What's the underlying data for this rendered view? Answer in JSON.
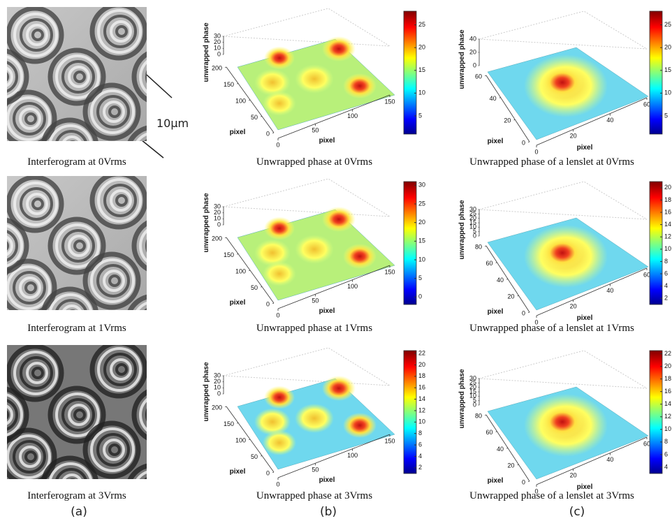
{
  "column_labels": [
    "(a)",
    "(b)",
    "(c)"
  ],
  "scale_label": "10μm",
  "rows": [
    {
      "interferogram_caption": "Interferogram at 0Vrms",
      "phase": {
        "caption": "Unwrapped phase at 0Vrms",
        "zlabel": "unwrapped phase",
        "ylabel": "pixel",
        "xlabel": "pixel",
        "zticks": [
          0,
          10,
          20,
          30
        ],
        "yticks": [
          0,
          50,
          100,
          150,
          200
        ],
        "xticks": [
          0,
          50,
          100,
          150
        ],
        "colorbar": {
          "lim": [
            1,
            28
          ],
          "ticks": [
            5,
            10,
            15,
            20,
            25
          ]
        }
      },
      "lenslet": {
        "caption": "Unwrapped phase of a lenslet at 0Vrms",
        "zlabel": "unwrapped phase",
        "ylabel": "pixel",
        "xlabel": "pixel",
        "zticks": [
          0,
          20,
          40
        ],
        "yticks": [
          0,
          20,
          40,
          60
        ],
        "xticks": [
          0,
          20,
          40,
          60
        ],
        "colorbar": {
          "lim": [
            1,
            28
          ],
          "ticks": [
            5,
            10,
            15,
            20,
            25
          ]
        }
      }
    },
    {
      "interferogram_caption": "Interferogram at 1Vrms",
      "phase": {
        "caption": "Unwrapped phase at 1Vrms",
        "zlabel": "unwrapped phase",
        "ylabel": "pixel",
        "xlabel": "pixel",
        "zticks": [
          0,
          10,
          20,
          30
        ],
        "yticks": [
          0,
          50,
          100,
          150,
          200
        ],
        "xticks": [
          0,
          50,
          100,
          150
        ],
        "colorbar": {
          "lim": [
            -2,
            31
          ],
          "ticks": [
            0,
            5,
            10,
            15,
            20,
            25,
            30
          ]
        }
      },
      "lenslet": {
        "caption": "Unwrapped phase of a lenslet at 1Vrms",
        "zlabel": "unwrapped phase",
        "ylabel": "pixel",
        "xlabel": "pixel",
        "zticks": [
          0,
          5,
          10,
          15,
          20,
          25,
          30
        ],
        "yticks": [
          0,
          20,
          40,
          60,
          80
        ],
        "xticks": [
          0,
          20,
          40,
          60
        ],
        "colorbar": {
          "lim": [
            1,
            21
          ],
          "ticks": [
            2,
            4,
            6,
            8,
            10,
            12,
            14,
            16,
            18,
            20
          ]
        }
      }
    },
    {
      "interferogram_caption": "Interferogram at 3Vrms",
      "phase": {
        "caption": "Unwrapped phase at 3Vrms",
        "zlabel": "unwrapped phase",
        "ylabel": "pixel",
        "xlabel": "pixel",
        "zticks": [
          0,
          10,
          20,
          30
        ],
        "yticks": [
          0,
          50,
          100,
          150,
          200
        ],
        "xticks": [
          0,
          50,
          100,
          150
        ],
        "colorbar": {
          "lim": [
            1,
            22.5
          ],
          "ticks": [
            2,
            4,
            6,
            8,
            10,
            12,
            14,
            16,
            18,
            20,
            22
          ]
        }
      },
      "lenslet": {
        "caption": "Unwrapped phase of a lenslet at 3Vrms",
        "zlabel": "unwrapped phase",
        "ylabel": "pixel",
        "xlabel": "pixel",
        "zticks": [
          0,
          5,
          10,
          15,
          20,
          25,
          30
        ],
        "yticks": [
          0,
          20,
          40,
          60,
          80
        ],
        "xticks": [
          0,
          20,
          40,
          60
        ],
        "colorbar": {
          "lim": [
            3,
            22.5
          ],
          "ticks": [
            4,
            6,
            8,
            10,
            12,
            14,
            16,
            18,
            20,
            22
          ]
        }
      }
    }
  ]
}
